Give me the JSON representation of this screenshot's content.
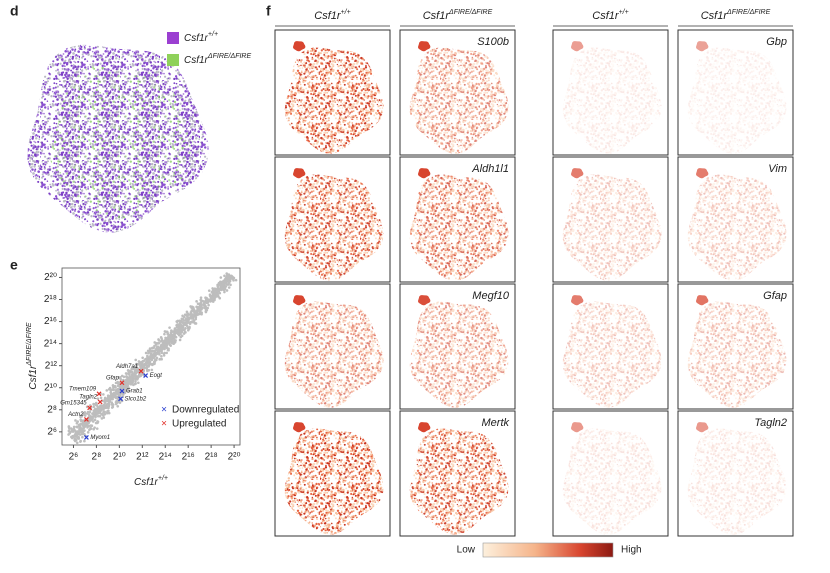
{
  "panel_d": {
    "letter": "d",
    "legend": [
      {
        "base": "Csf1r",
        "sup": "+/+",
        "color": "#9b3fd1"
      },
      {
        "base": "Csf1r",
        "sup": "ΔFIRE/ΔFIRE",
        "color": "#8fd15a"
      }
    ]
  },
  "chart_data": {
    "type": "scatter",
    "letter": "e",
    "log_base": 2,
    "x_label": {
      "base": "Csf1r",
      "sup": "+/+"
    },
    "y_label": {
      "base": "Csf1r",
      "sup": "ΔFIRE/ΔFIRE"
    },
    "xlim": [
      32,
      1500000
    ],
    "ylim": [
      28,
      1900000
    ],
    "xticks": [
      {
        "value": 64,
        "label": "2⁶"
      },
      {
        "value": 256,
        "label": "2⁸"
      },
      {
        "value": 1024,
        "label": "2¹⁰"
      },
      {
        "value": 4096,
        "label": "2¹²"
      },
      {
        "value": 16384,
        "label": "2¹⁴"
      },
      {
        "value": 65536,
        "label": "2¹⁶"
      },
      {
        "value": 262144,
        "label": "2¹⁸"
      },
      {
        "value": 1048576,
        "label": "2²⁰"
      }
    ],
    "yticks": [
      {
        "value": 64,
        "label": "2⁶"
      },
      {
        "value": 256,
        "label": "2⁸"
      },
      {
        "value": 1024,
        "label": "2¹⁰"
      },
      {
        "value": 4096,
        "label": "2¹²"
      },
      {
        "value": 16384,
        "label": "2¹⁴"
      },
      {
        "value": 65536,
        "label": "2¹⁶"
      },
      {
        "value": 262144,
        "label": "2¹⁸"
      },
      {
        "value": 1048576,
        "label": "2²⁰"
      }
    ],
    "legend": "lower right",
    "series": [
      {
        "name": "Downregulated",
        "color": "#2a3fd0",
        "x": [
          5000,
          1200,
          1100,
          140
        ],
        "values": [
          2200,
          830,
          510,
          45
        ],
        "labels": [
          "Eogt",
          "Grab1",
          "Slco1b2",
          "Myom1"
        ]
      },
      {
        "name": "Upregulated",
        "color": "#e0302a",
        "x": [
          3800,
          1200,
          300,
          320,
          170,
          140
        ],
        "values": [
          2900,
          1400,
          700,
          420,
          290,
          140
        ],
        "labels": [
          "Aldh7a1",
          "Gfap",
          "Tmem109",
          "Tagln2",
          "Gm15345",
          "Actn2"
        ]
      }
    ]
  },
  "panel_f": {
    "letter": "f",
    "columns": [
      {
        "base": "Csf1r",
        "sup": "+/+"
      },
      {
        "base": "Csf1r",
        "sup": "ΔFIRE/ΔFIRE"
      },
      {
        "base": "Csf1r",
        "sup": "+/+"
      },
      {
        "base": "Csf1r",
        "sup": "ΔFIRE/ΔFIRE"
      }
    ],
    "genes_left": [
      "S100b",
      "Aldh1l1",
      "Megf10",
      "Mertk"
    ],
    "genes_right": [
      "Gbp",
      "Vim",
      "Gfap",
      "Tagln2"
    ],
    "colorbar": {
      "low": "Low",
      "high": "High"
    }
  }
}
